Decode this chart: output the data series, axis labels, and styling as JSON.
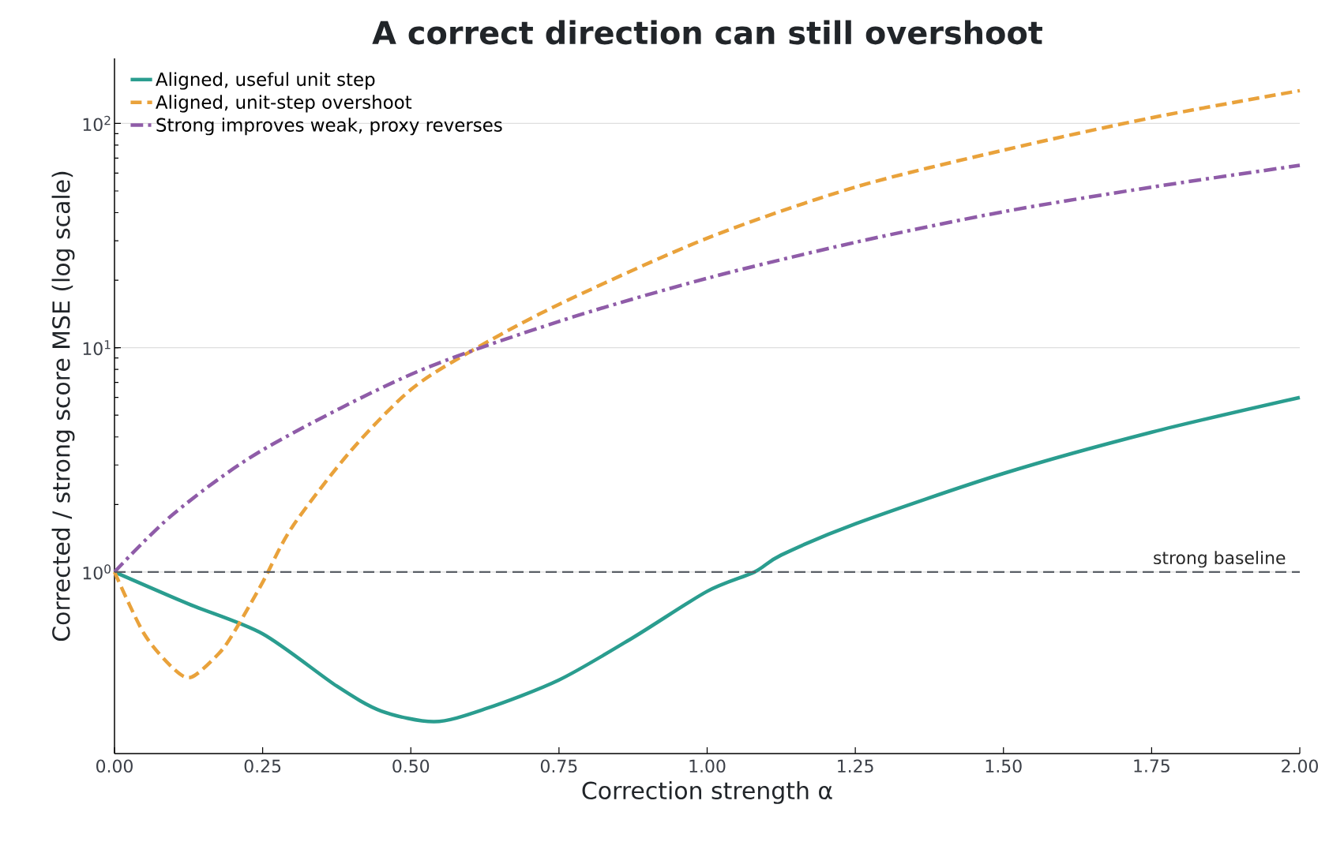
{
  "chart_data": {
    "type": "line",
    "title": "A correct direction can still overshoot",
    "xlabel": "Correction strength α",
    "ylabel": "Corrected / strong score MSE (log scale)",
    "log": "y",
    "grid": "y",
    "legend": "top left",
    "xlim": [
      0,
      2
    ],
    "ylim": [
      0.155,
      195
    ],
    "xticks": [
      {
        "value": 0,
        "label": "0.00"
      },
      {
        "value": 0.25,
        "label": "0.25"
      },
      {
        "value": 0.5,
        "label": "0.50"
      },
      {
        "value": 0.75,
        "label": "0.75"
      },
      {
        "value": 1,
        "label": "1.00"
      },
      {
        "value": 1.25,
        "label": "1.25"
      },
      {
        "value": 1.5,
        "label": "1.50"
      },
      {
        "value": 1.75,
        "label": "1.75"
      },
      {
        "value": 2,
        "label": "2.00"
      }
    ],
    "yticks": [
      {
        "value": 1,
        "label": "10$^{0}$"
      },
      {
        "value": 10,
        "label": "10$^{1}$"
      },
      {
        "value": 100,
        "label": "10$^{2}$"
      }
    ],
    "ref_lines": [
      {
        "axis": "y",
        "value": 1,
        "label": "strong baseline",
        "color": "#5a5f66",
        "line_style": "dashed"
      }
    ],
    "series": [
      {
        "name": "Aligned, useful unit step",
        "color": "#2a9d8f",
        "line_style": "solid",
        "x": [
          0,
          0.125,
          0.25,
          0.375,
          0.45,
          0.54,
          0.625,
          0.75,
          0.875,
          1.0,
          1.08,
          1.125,
          1.25,
          1.5,
          1.75,
          2.0
        ],
        "values": [
          1,
          0.72,
          0.53,
          0.31,
          0.24,
          0.215,
          0.245,
          0.33,
          0.51,
          0.82,
          1,
          1.19,
          1.64,
          2.75,
          4.2,
          6.0
        ]
      },
      {
        "name": "Aligned, unit-step overshoot",
        "color": "#e9a23b",
        "line_style": "dashed",
        "x": [
          0,
          0.05,
          0.1,
          0.13,
          0.175,
          0.2,
          0.25,
          0.3,
          0.4,
          0.5,
          0.6,
          0.75,
          1.0,
          1.25,
          1.5,
          1.75,
          2.0
        ],
        "values": [
          1,
          0.53,
          0.37,
          0.34,
          0.43,
          0.53,
          0.9,
          1.59,
          3.5,
          6.5,
          9.6,
          15.6,
          30.8,
          52,
          76,
          106,
          140
        ]
      },
      {
        "name": "Strong improves weak, proxy reverses",
        "color": "#8f5ca8",
        "line_style": "dashdot",
        "x": [
          0,
          0.1,
          0.25,
          0.5,
          0.75,
          1.0,
          1.25,
          1.5,
          1.75,
          2.0
        ],
        "values": [
          1,
          1.82,
          3.5,
          7.6,
          13.1,
          20.4,
          29.5,
          40.4,
          52,
          65
        ]
      }
    ]
  }
}
